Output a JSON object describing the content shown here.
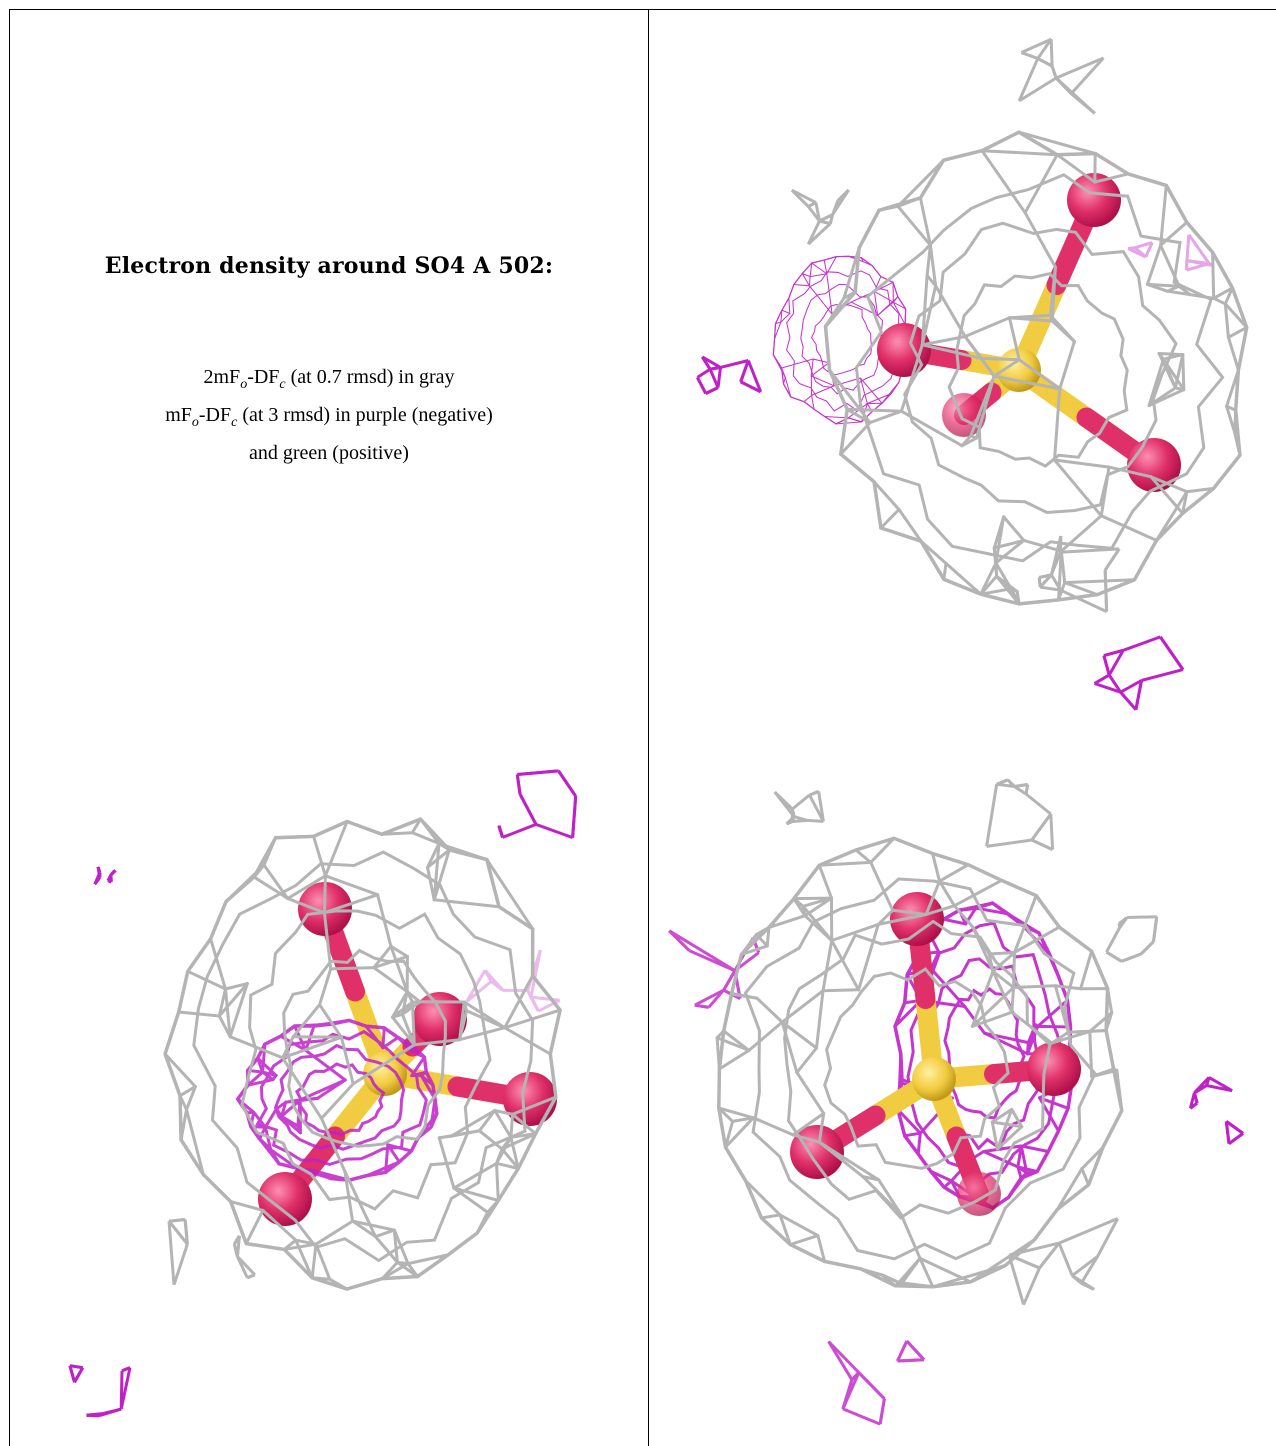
{
  "caption": {
    "title": "Electron density around SO4 A 502:",
    "line1": {
      "pre": "2mF",
      "sub1": "o",
      "mid": "-DF",
      "sub2": "c",
      "post": " (at 0.7 rmsd) in gray"
    },
    "line2": {
      "pre": "mF",
      "sub1": "o",
      "mid": "-DF",
      "sub2": "c",
      "post": " (at 3 rmsd) in purple (negative)"
    },
    "line3": "and green (positive)"
  },
  "colors": {
    "mesh_2fofc": "#b4b4b4",
    "mesh_fofc_negative": "#c020c8",
    "oxygen": "#e0306a",
    "sulfur": "#f2cc40"
  }
}
